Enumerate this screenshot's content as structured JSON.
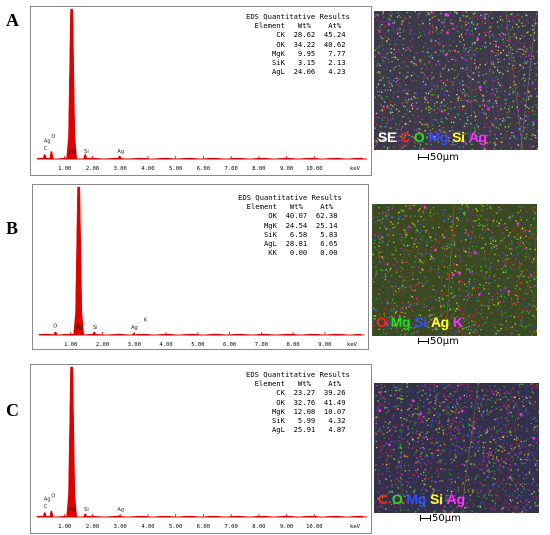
{
  "chart_data": [
    {
      "panel": "A",
      "type": "bar",
      "title": "EDS Quantitative Results",
      "xunit": "keV",
      "xlim": [
        0,
        10.6
      ],
      "xticks": [
        "1.00",
        "2.00",
        "3.00",
        "4.00",
        "5.00",
        "6.00",
        "7.00",
        "8.00",
        "9.00",
        "10.00"
      ],
      "peaks": [
        {
          "label": "O",
          "x": 0.52,
          "h": 0.05
        },
        {
          "label": "C",
          "x": 0.28,
          "h": 0.03
        },
        {
          "label": "Ag",
          "x": 0.3,
          "h": 0.0
        },
        {
          "label": "Mg",
          "x": 1.25,
          "h": 1.0
        },
        {
          "label": "Si",
          "x": 1.74,
          "h": 0.03
        },
        {
          "label": "Ag",
          "x": 2.98,
          "h": 0.02
        }
      ],
      "peak_labels": [
        {
          "text": "Ag",
          "x": 0.25,
          "y": 0.11
        },
        {
          "text": "C",
          "x": 0.25,
          "y": 0.06
        },
        {
          "text": "O",
          "x": 0.52,
          "y": 0.14
        },
        {
          "text": "Mg",
          "x": 1.15,
          "y": 0.04
        },
        {
          "text": "Si",
          "x": 1.7,
          "y": 0.04
        },
        {
          "text": "Ag",
          "x": 2.9,
          "y": 0.04
        }
      ],
      "table": {
        "headers": [
          "Element",
          "Wt%",
          "At%"
        ],
        "rows": [
          [
            "CK",
            "28.62",
            "45.24"
          ],
          [
            "OK",
            "34.22",
            "40.62"
          ],
          [
            "MgK",
            "9.95",
            "7.77"
          ],
          [
            "SiK",
            "3.15",
            "2.13"
          ],
          [
            "AgL",
            "24.06",
            "4.23"
          ]
        ]
      }
    },
    {
      "panel": "B",
      "type": "bar",
      "title": "EDS Quantitative Results",
      "xunit": "keV",
      "xlim": [
        0,
        10.2
      ],
      "xticks": [
        "1.00",
        "2.00",
        "3.00",
        "4.00",
        "5.00",
        "6.00",
        "7.00",
        "8.00",
        "9.00"
      ],
      "peaks": [
        {
          "label": "O",
          "x": 0.52,
          "h": 0.02
        },
        {
          "label": "Mg",
          "x": 1.25,
          "h": 1.0
        },
        {
          "label": "Si",
          "x": 1.74,
          "h": 0.02
        },
        {
          "label": "Ag",
          "x": 2.98,
          "h": 0.01
        },
        {
          "label": "K",
          "x": 3.31,
          "h": 0.0
        }
      ],
      "peak_labels": [
        {
          "text": "O",
          "x": 0.45,
          "y": 0.05
        },
        {
          "text": "Mg",
          "x": 1.15,
          "y": 0.04
        },
        {
          "text": "Si",
          "x": 1.7,
          "y": 0.04
        },
        {
          "text": "Ag",
          "x": 2.9,
          "y": 0.04
        },
        {
          "text": "K",
          "x": 3.3,
          "y": 0.09
        }
      ],
      "table": {
        "headers": [
          "Element",
          "Wt%",
          "At%"
        ],
        "rows": [
          [
            "OK",
            "40.07",
            "62.38"
          ],
          [
            "MgK",
            "24.54",
            "25.14"
          ],
          [
            "SiK",
            "6.58",
            "5.83"
          ],
          [
            "AgL",
            "28.81",
            "6.65"
          ],
          [
            "KK",
            "0.00",
            "0.00"
          ]
        ]
      }
    },
    {
      "panel": "C",
      "type": "bar",
      "title": "EDS Quantitative Results",
      "xunit": "keV",
      "xlim": [
        0,
        10.6
      ],
      "xticks": [
        "1.00",
        "2.00",
        "3.00",
        "4.00",
        "5.00",
        "6.00",
        "7.00",
        "8.00",
        "9.00",
        "10.00"
      ],
      "peaks": [
        {
          "label": "O",
          "x": 0.52,
          "h": 0.04
        },
        {
          "label": "C",
          "x": 0.28,
          "h": 0.03
        },
        {
          "label": "Mg",
          "x": 1.25,
          "h": 1.0
        },
        {
          "label": "Si",
          "x": 1.74,
          "h": 0.02
        },
        {
          "label": "Ag",
          "x": 2.98,
          "h": 0.01
        }
      ],
      "peak_labels": [
        {
          "text": "Ag",
          "x": 0.25,
          "y": 0.11
        },
        {
          "text": "C",
          "x": 0.25,
          "y": 0.06
        },
        {
          "text": "O",
          "x": 0.52,
          "y": 0.13
        },
        {
          "text": "Mg",
          "x": 1.15,
          "y": 0.04
        },
        {
          "text": "Si",
          "x": 1.7,
          "y": 0.04
        },
        {
          "text": "Ag",
          "x": 2.9,
          "y": 0.04
        }
      ],
      "table": {
        "headers": [
          "Element",
          "Wt%",
          "At%"
        ],
        "rows": [
          [
            "CK",
            "23.27",
            "39.26"
          ],
          [
            "OK",
            "32.76",
            "41.49"
          ],
          [
            "MgK",
            "12.08",
            "10.07"
          ],
          [
            "SiK",
            "5.99",
            "4.32"
          ],
          [
            "AgL",
            "25.91",
            "4.87"
          ]
        ]
      }
    }
  ],
  "maps": [
    {
      "legend": [
        {
          "t": "SE",
          "c": "#ffffff"
        },
        {
          "t": "C",
          "c": "#ff2020"
        },
        {
          "t": "O",
          "c": "#20e020"
        },
        {
          "t": "Mg",
          "c": "#3050ff"
        },
        {
          "t": "Si",
          "c": "#ffff30"
        },
        {
          "t": "Ag",
          "c": "#ff30ff"
        }
      ],
      "base": "#3c3a48",
      "scale": "50µm"
    },
    {
      "legend": [
        {
          "t": "O",
          "c": "#ff2020"
        },
        {
          "t": "Mg",
          "c": "#20e020"
        },
        {
          "t": "Si",
          "c": "#3050ff"
        },
        {
          "t": "Ag",
          "c": "#ffff30"
        },
        {
          "t": "K",
          "c": "#ff30ff"
        }
      ],
      "base": "#3a4a22",
      "scale": "50µm"
    },
    {
      "legend": [
        {
          "t": "C",
          "c": "#ff2020"
        },
        {
          "t": "O",
          "c": "#20e020"
        },
        {
          "t": "Mg",
          "c": "#3050ff"
        },
        {
          "t": "Si",
          "c": "#ffff30"
        },
        {
          "t": "Ag",
          "c": "#ff30ff"
        }
      ],
      "base": "#33304a",
      "scale": "50µm"
    }
  ],
  "colors": {
    "spectrum": "#e00000",
    "axis": "#e00000"
  }
}
